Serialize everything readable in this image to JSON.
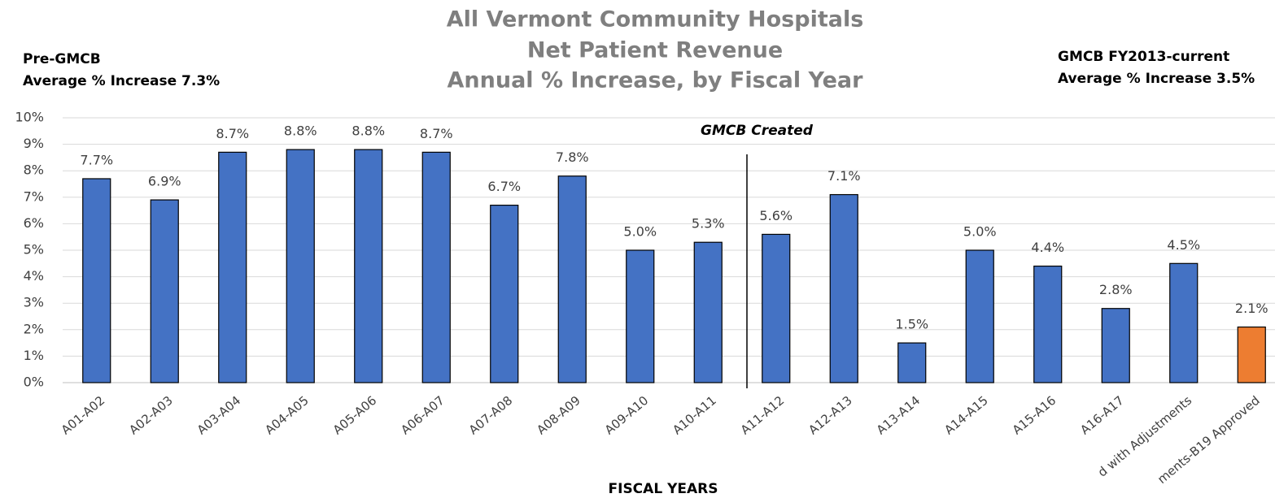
{
  "chart_data": {
    "type": "bar",
    "title": [
      "All Vermont Community Hospitals",
      "Net Patient Revenue",
      "Annual % Increase, by Fiscal Year"
    ],
    "annotations": {
      "left": [
        "Pre-GMCB",
        "Average % Increase 7.3%"
      ],
      "right": [
        "GMCB FY2013-current",
        "Average % Increase 3.5%"
      ],
      "divider": "GMCB Created"
    },
    "x_label": "FISCAL YEARS",
    "categories": [
      "A01-A02",
      "A02-A03",
      "A03-A04",
      "A04-A05",
      "A05-A06",
      "A06-A07",
      "A07-A08",
      "A08-A09",
      "A09-A10",
      "A10-A11",
      "A11-A12",
      "A12-A13",
      "A13-A14",
      "A14-A15",
      "A15-A16",
      "A16-A17",
      "d with Adjustments",
      "ments-B19 Approved"
    ],
    "values": [
      7.7,
      6.9,
      8.7,
      8.8,
      8.8,
      8.7,
      6.7,
      7.8,
      5.0,
      5.3,
      5.6,
      7.1,
      1.5,
      5.0,
      4.4,
      2.8,
      4.5,
      2.1
    ],
    "value_labels": [
      "7.7%",
      "6.9%",
      "8.7%",
      "8.8%",
      "8.8%",
      "8.7%",
      "6.7%",
      "7.8%",
      "5.0%",
      "5.3%",
      "5.6%",
      "7.1%",
      "1.5%",
      "5.0%",
      "4.4%",
      "2.8%",
      "4.5%",
      "2.1%"
    ],
    "colors": [
      "#4472c4",
      "#4472c4",
      "#4472c4",
      "#4472c4",
      "#4472c4",
      "#4472c4",
      "#4472c4",
      "#4472c4",
      "#4472c4",
      "#4472c4",
      "#4472c4",
      "#4472c4",
      "#4472c4",
      "#4472c4",
      "#4472c4",
      "#4472c4",
      "#4472c4",
      "#ed7d31"
    ],
    "ylim": [
      0,
      10
    ],
    "yticks": [
      {
        "value": 0,
        "label": "0%"
      },
      {
        "value": 1,
        "label": "1%"
      },
      {
        "value": 2,
        "label": "2%"
      },
      {
        "value": 3,
        "label": "3%"
      },
      {
        "value": 4,
        "label": "4%"
      },
      {
        "value": 5,
        "label": "5%"
      },
      {
        "value": 6,
        "label": "6%"
      },
      {
        "value": 7,
        "label": "7%"
      },
      {
        "value": 8,
        "label": "8%"
      },
      {
        "value": 9,
        "label": "9%"
      },
      {
        "value": 10,
        "label": "10%"
      }
    ],
    "grid": true
  }
}
